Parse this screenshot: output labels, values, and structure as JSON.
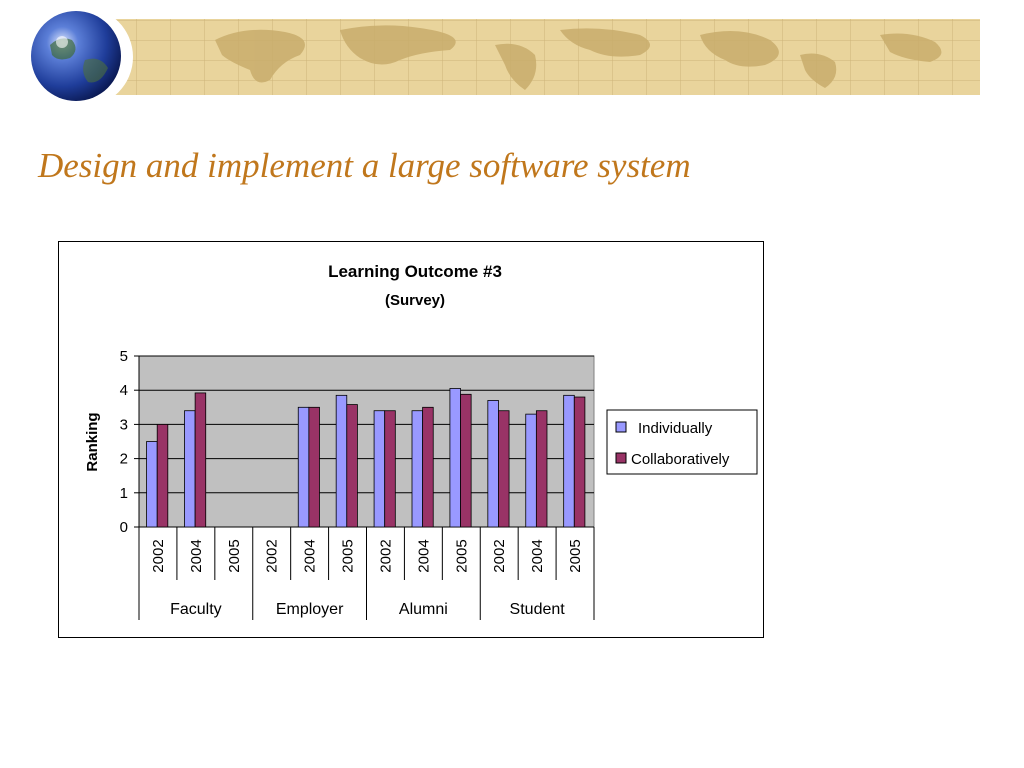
{
  "slide": {
    "title": "Design and implement a large software system"
  },
  "chart_data": {
    "type": "bar",
    "title": "Learning Outcome #3",
    "subtitle": "(Survey)",
    "ylabel": "Ranking",
    "xlabel": "",
    "ylim": [
      0,
      5
    ],
    "yticks": [
      0,
      1,
      2,
      3,
      4,
      5
    ],
    "grid": true,
    "legend_position": "right",
    "groups": [
      {
        "label": "Faculty",
        "categories": [
          "2002",
          "2004",
          "2005"
        ]
      },
      {
        "label": "Employer",
        "categories": [
          "2002",
          "2004",
          "2005"
        ]
      },
      {
        "label": "Alumni",
        "categories": [
          "2002",
          "2004",
          "2005"
        ]
      },
      {
        "label": "Student",
        "categories": [
          "2002",
          "2004",
          "2005"
        ]
      }
    ],
    "series": [
      {
        "name": "Individually",
        "color": "#9999ff",
        "values": [
          2.5,
          3.4,
          null,
          null,
          3.5,
          3.85,
          3.4,
          3.4,
          4.05,
          3.7,
          3.3,
          3.85
        ]
      },
      {
        "name": "Collaboratively",
        "color": "#993366",
        "values": [
          3.0,
          3.92,
          null,
          null,
          3.5,
          3.58,
          3.4,
          3.5,
          3.88,
          3.4,
          3.4,
          3.8
        ]
      }
    ],
    "plot_background": "#c0c0c0"
  }
}
